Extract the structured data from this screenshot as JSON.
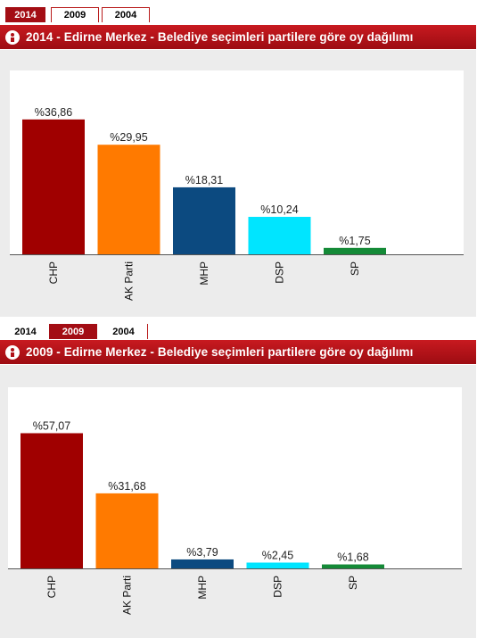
{
  "charts": [
    {
      "tabs": [
        {
          "label": "2014",
          "active": true
        },
        {
          "label": "2009",
          "active": false
        },
        {
          "label": "2004",
          "active": false
        }
      ],
      "title": "2014 - Edirne Merkez - Belediye seçimleri partilere göre oy dağılımı",
      "chart_data": {
        "type": "bar",
        "title": "2014 - Edirne Merkez - Belediye seçimleri partilere göre oy dağılımı",
        "categories": [
          "CHP",
          "AK Parti",
          "MHP",
          "DSP",
          "SP"
        ],
        "values": [
          36.86,
          29.95,
          18.31,
          10.24,
          1.75
        ],
        "value_labels": [
          "%36,86",
          "%29,95",
          "%18,31",
          "%10,24",
          "%1,75"
        ],
        "colors": [
          "#a00000",
          "#ff7a00",
          "#0c4a80",
          "#00e5ff",
          "#148a37"
        ],
        "xlabel": "",
        "ylabel": "",
        "grid": false,
        "legend": "none"
      }
    },
    {
      "tabs": [
        {
          "label": "2014",
          "active": false
        },
        {
          "label": "2009",
          "active": true
        },
        {
          "label": "2004",
          "active": false
        }
      ],
      "title": "2009 - Edirne Merkez - Belediye seçimleri partilere göre oy dağılımı",
      "chart_data": {
        "type": "bar",
        "title": "2009 - Edirne Merkez - Belediye seçimleri partilere göre oy dağılımı",
        "categories": [
          "CHP",
          "AK Parti",
          "MHP",
          "DSP",
          "SP"
        ],
        "values": [
          57.07,
          31.68,
          3.79,
          2.45,
          1.68
        ],
        "value_labels": [
          "%57,07",
          "%31,68",
          "%3,79",
          "%2,45",
          "%1,68"
        ],
        "colors": [
          "#a00000",
          "#ff7a00",
          "#0c4a80",
          "#00e5ff",
          "#148a37"
        ],
        "xlabel": "",
        "ylabel": "",
        "grid": false,
        "legend": "none"
      }
    }
  ]
}
